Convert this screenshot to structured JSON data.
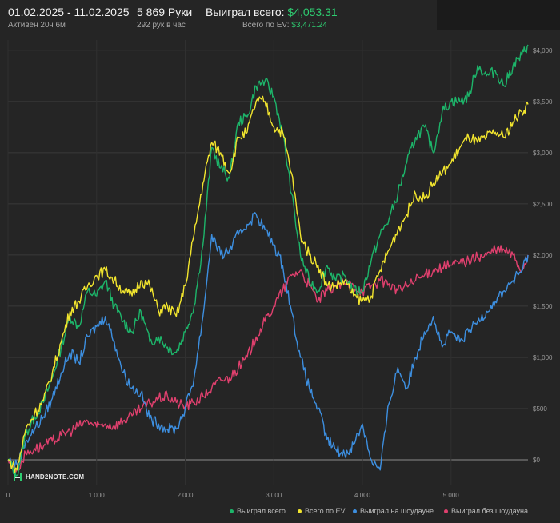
{
  "header": {
    "date_range": "01.02.2025 - 11.02.2025",
    "active_time": "Активен 20ч 6м",
    "hands": "5 869 Руки",
    "hands_per_hour": "292 рук в час",
    "won_total_label": "Выиграл всего:",
    "won_total_value": "$4,053.31",
    "ev_total_label": "Всего по EV:",
    "ev_total_value": "$3,471.24"
  },
  "logo": {
    "text": "HAND2NOTE.COM"
  },
  "colors": {
    "background": "#252525",
    "won_total": "#1db56a",
    "ev": "#f2e52e",
    "showdown": "#3d8fe0",
    "non_showdown": "#e0406e"
  },
  "chart_data": {
    "type": "line",
    "xlim": [
      0,
      5869
    ],
    "ylim": [
      -250,
      4100
    ],
    "x_ticks": [
      0,
      1000,
      2000,
      3000,
      4000,
      5000
    ],
    "x_tick_labels": [
      "0",
      "1 000",
      "2 000",
      "3 000",
      "4 000",
      "5 000"
    ],
    "y_ticks": [
      0,
      500,
      1000,
      1500,
      2000,
      2500,
      3000,
      3500,
      4000
    ],
    "y_tick_labels": [
      "$0",
      "$500",
      "$1,000",
      "$1,500",
      "$2,000",
      "$2,500",
      "$3,000",
      "$3,500",
      "$4,000"
    ],
    "legend_position": "bottom-right",
    "series": [
      {
        "name": "Выиграл всего",
        "color": "#1db56a",
        "x": [
          0,
          100,
          200,
          300,
          400,
          500,
          600,
          700,
          800,
          900,
          1000,
          1100,
          1200,
          1300,
          1400,
          1500,
          1600,
          1700,
          1800,
          1900,
          2000,
          2100,
          2200,
          2300,
          2400,
          2500,
          2600,
          2700,
          2800,
          2900,
          3000,
          3100,
          3200,
          3300,
          3400,
          3500,
          3600,
          3700,
          3800,
          3900,
          4000,
          4100,
          4200,
          4300,
          4400,
          4500,
          4600,
          4700,
          4800,
          4900,
          5000,
          5100,
          5200,
          5300,
          5400,
          5500,
          5600,
          5700,
          5800,
          5869
        ],
        "values": [
          0,
          -150,
          250,
          420,
          560,
          800,
          1100,
          1400,
          1300,
          1650,
          1600,
          1750,
          1500,
          1350,
          1250,
          1450,
          1150,
          1200,
          1100,
          1050,
          1250,
          1500,
          2100,
          3050,
          2850,
          2750,
          3300,
          3350,
          3650,
          3700,
          3550,
          3200,
          2600,
          2000,
          1750,
          1650,
          1900,
          1750,
          1800,
          1650,
          1650,
          1950,
          2200,
          2350,
          2600,
          2900,
          3150,
          3250,
          3000,
          3400,
          3500,
          3500,
          3550,
          3850,
          3750,
          3800,
          3650,
          3850,
          3950,
          4053
        ]
      },
      {
        "name": "Всего по EV",
        "color": "#f2e52e",
        "x": [
          0,
          100,
          200,
          300,
          400,
          500,
          600,
          700,
          800,
          900,
          1000,
          1100,
          1200,
          1300,
          1400,
          1500,
          1600,
          1700,
          1800,
          1900,
          2000,
          2100,
          2200,
          2300,
          2400,
          2500,
          2600,
          2700,
          2800,
          2900,
          3000,
          3100,
          3200,
          3300,
          3400,
          3500,
          3600,
          3700,
          3800,
          3900,
          4000,
          4100,
          4200,
          4300,
          4400,
          4500,
          4600,
          4700,
          4800,
          4900,
          5000,
          5100,
          5200,
          5300,
          5400,
          5500,
          5600,
          5700,
          5800,
          5869
        ],
        "values": [
          0,
          -100,
          300,
          450,
          580,
          850,
          1150,
          1450,
          1550,
          1700,
          1800,
          1850,
          1750,
          1650,
          1600,
          1750,
          1700,
          1450,
          1500,
          1400,
          1700,
          2200,
          2700,
          3100,
          3000,
          2800,
          3150,
          3200,
          3500,
          3500,
          3250,
          3200,
          2800,
          2200,
          2000,
          1900,
          1700,
          1700,
          1750,
          1600,
          1550,
          1600,
          1850,
          2050,
          2250,
          2400,
          2600,
          2550,
          2700,
          2800,
          2900,
          3050,
          3150,
          3100,
          3150,
          3200,
          3150,
          3300,
          3400,
          3471
        ]
      },
      {
        "name": "Выиграл на шоудауне",
        "color": "#3d8fe0",
        "x": [
          0,
          100,
          200,
          300,
          400,
          500,
          600,
          700,
          800,
          900,
          1000,
          1100,
          1200,
          1300,
          1400,
          1500,
          1600,
          1700,
          1800,
          1900,
          2000,
          2100,
          2200,
          2300,
          2400,
          2500,
          2600,
          2700,
          2800,
          2900,
          3000,
          3100,
          3200,
          3300,
          3400,
          3500,
          3600,
          3700,
          3800,
          3900,
          4000,
          4100,
          4200,
          4300,
          4400,
          4500,
          4600,
          4700,
          4800,
          4900,
          5000,
          5100,
          5200,
          5300,
          5400,
          5500,
          5600,
          5700,
          5800,
          5869
        ],
        "values": [
          0,
          -50,
          180,
          300,
          420,
          600,
          850,
          1050,
          950,
          1200,
          1300,
          1400,
          1150,
          850,
          700,
          650,
          400,
          350,
          300,
          300,
          500,
          800,
          1400,
          2200,
          2000,
          2050,
          2200,
          2300,
          2400,
          2250,
          2100,
          1900,
          1450,
          1000,
          700,
          500,
          200,
          100,
          50,
          150,
          350,
          0,
          -100,
          550,
          900,
          700,
          1000,
          1250,
          1400,
          1100,
          1250,
          1150,
          1250,
          1350,
          1450,
          1550,
          1650,
          1750,
          1850,
          2000
        ]
      },
      {
        "name": "Выиграл без шоудауна",
        "color": "#e0406e",
        "x": [
          0,
          100,
          200,
          300,
          400,
          500,
          600,
          700,
          800,
          900,
          1000,
          1100,
          1200,
          1300,
          1400,
          1500,
          1600,
          1700,
          1800,
          1900,
          2000,
          2100,
          2200,
          2300,
          2400,
          2500,
          2600,
          2700,
          2800,
          2900,
          3000,
          3100,
          3200,
          3300,
          3400,
          3500,
          3600,
          3700,
          3800,
          3900,
          4000,
          4100,
          4200,
          4300,
          4400,
          4500,
          4600,
          4700,
          4800,
          4900,
          5000,
          5100,
          5200,
          5300,
          5400,
          5500,
          5600,
          5700,
          5800,
          5869
        ],
        "values": [
          0,
          -100,
          60,
          110,
          130,
          180,
          240,
          280,
          330,
          380,
          320,
          350,
          330,
          380,
          430,
          500,
          550,
          600,
          620,
          560,
          520,
          560,
          620,
          700,
          780,
          800,
          900,
          1000,
          1200,
          1350,
          1500,
          1650,
          1800,
          1850,
          1700,
          1550,
          1650,
          1700,
          1720,
          1700,
          1650,
          1700,
          1750,
          1720,
          1650,
          1700,
          1750,
          1800,
          1850,
          1880,
          1900,
          1920,
          1950,
          1980,
          2000,
          2050,
          2050,
          2000,
          1850,
          2000
        ]
      }
    ]
  }
}
